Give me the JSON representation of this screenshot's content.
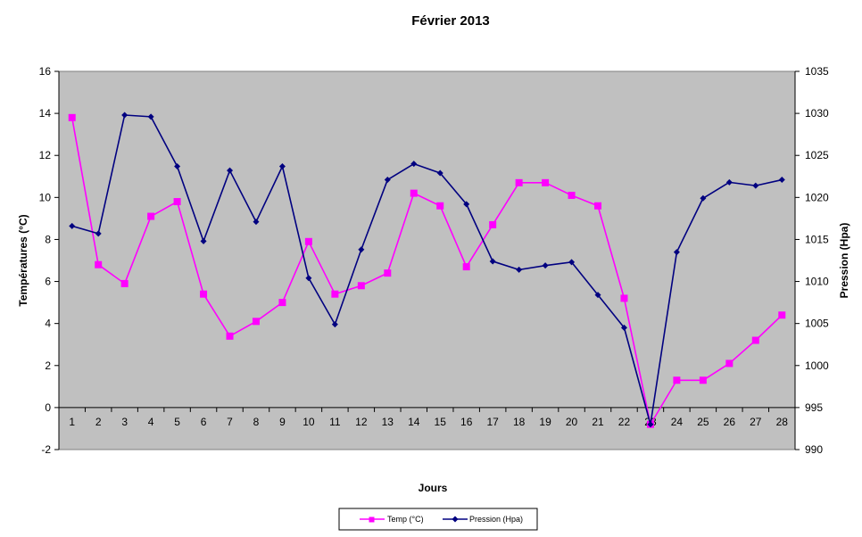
{
  "chart_data": {
    "type": "line",
    "title": "Février 2013",
    "xlabel": "Jours",
    "ylabel_left": "Températures (°C)",
    "ylabel_right": "Pression (Hpa)",
    "x": [
      1,
      2,
      3,
      4,
      5,
      6,
      7,
      8,
      9,
      10,
      11,
      12,
      13,
      14,
      15,
      16,
      17,
      18,
      19,
      20,
      21,
      22,
      23,
      24,
      25,
      26,
      27,
      28
    ],
    "x_tick_labels": [
      "1",
      "2",
      "3",
      "4",
      "5",
      "6",
      "7",
      "8",
      "9",
      "10",
      "11",
      "12",
      "13",
      "14",
      "15",
      "16",
      "17",
      "18",
      "19",
      "20",
      "21",
      "22",
      "23",
      "24",
      "25",
      "26",
      "27",
      "28"
    ],
    "y_left_lim": [
      -2,
      16
    ],
    "y_left_ticks": [
      "-2",
      "0",
      "2",
      "4",
      "6",
      "8",
      "10",
      "12",
      "14",
      "16"
    ],
    "y_right_lim": [
      990,
      1035
    ],
    "y_right_ticks": [
      "990",
      "995",
      "1000",
      "1005",
      "1010",
      "1015",
      "1020",
      "1025",
      "1030",
      "1035"
    ],
    "plot_background": "#c0c0c0",
    "grid": false,
    "legend_position": "bottom",
    "series": [
      {
        "name": "Temp (°C)",
        "axis": "left",
        "color": "#ff00ff",
        "marker": "square",
        "values": [
          13.8,
          6.8,
          5.9,
          9.1,
          9.8,
          5.4,
          3.4,
          4.1,
          5.0,
          7.9,
          5.4,
          5.8,
          6.4,
          10.2,
          9.6,
          6.7,
          8.7,
          10.7,
          10.7,
          10.1,
          9.6,
          5.2,
          -0.8,
          1.3,
          1.3,
          2.1,
          3.2,
          4.4
        ]
      },
      {
        "name": "Pression (Hpa)",
        "axis": "right",
        "color": "#000080",
        "marker": "diamond",
        "values": [
          1016.6,
          1015.7,
          1029.8,
          1029.6,
          1023.7,
          1014.8,
          1023.2,
          1017.1,
          1023.7,
          1010.4,
          1004.9,
          1013.8,
          1022.1,
          1024.0,
          1022.9,
          1019.2,
          1012.4,
          1011.4,
          1011.9,
          1012.3,
          1008.4,
          1004.5,
          993.0,
          1013.5,
          1019.9,
          1021.8,
          1021.4,
          1022.1
        ]
      }
    ]
  }
}
